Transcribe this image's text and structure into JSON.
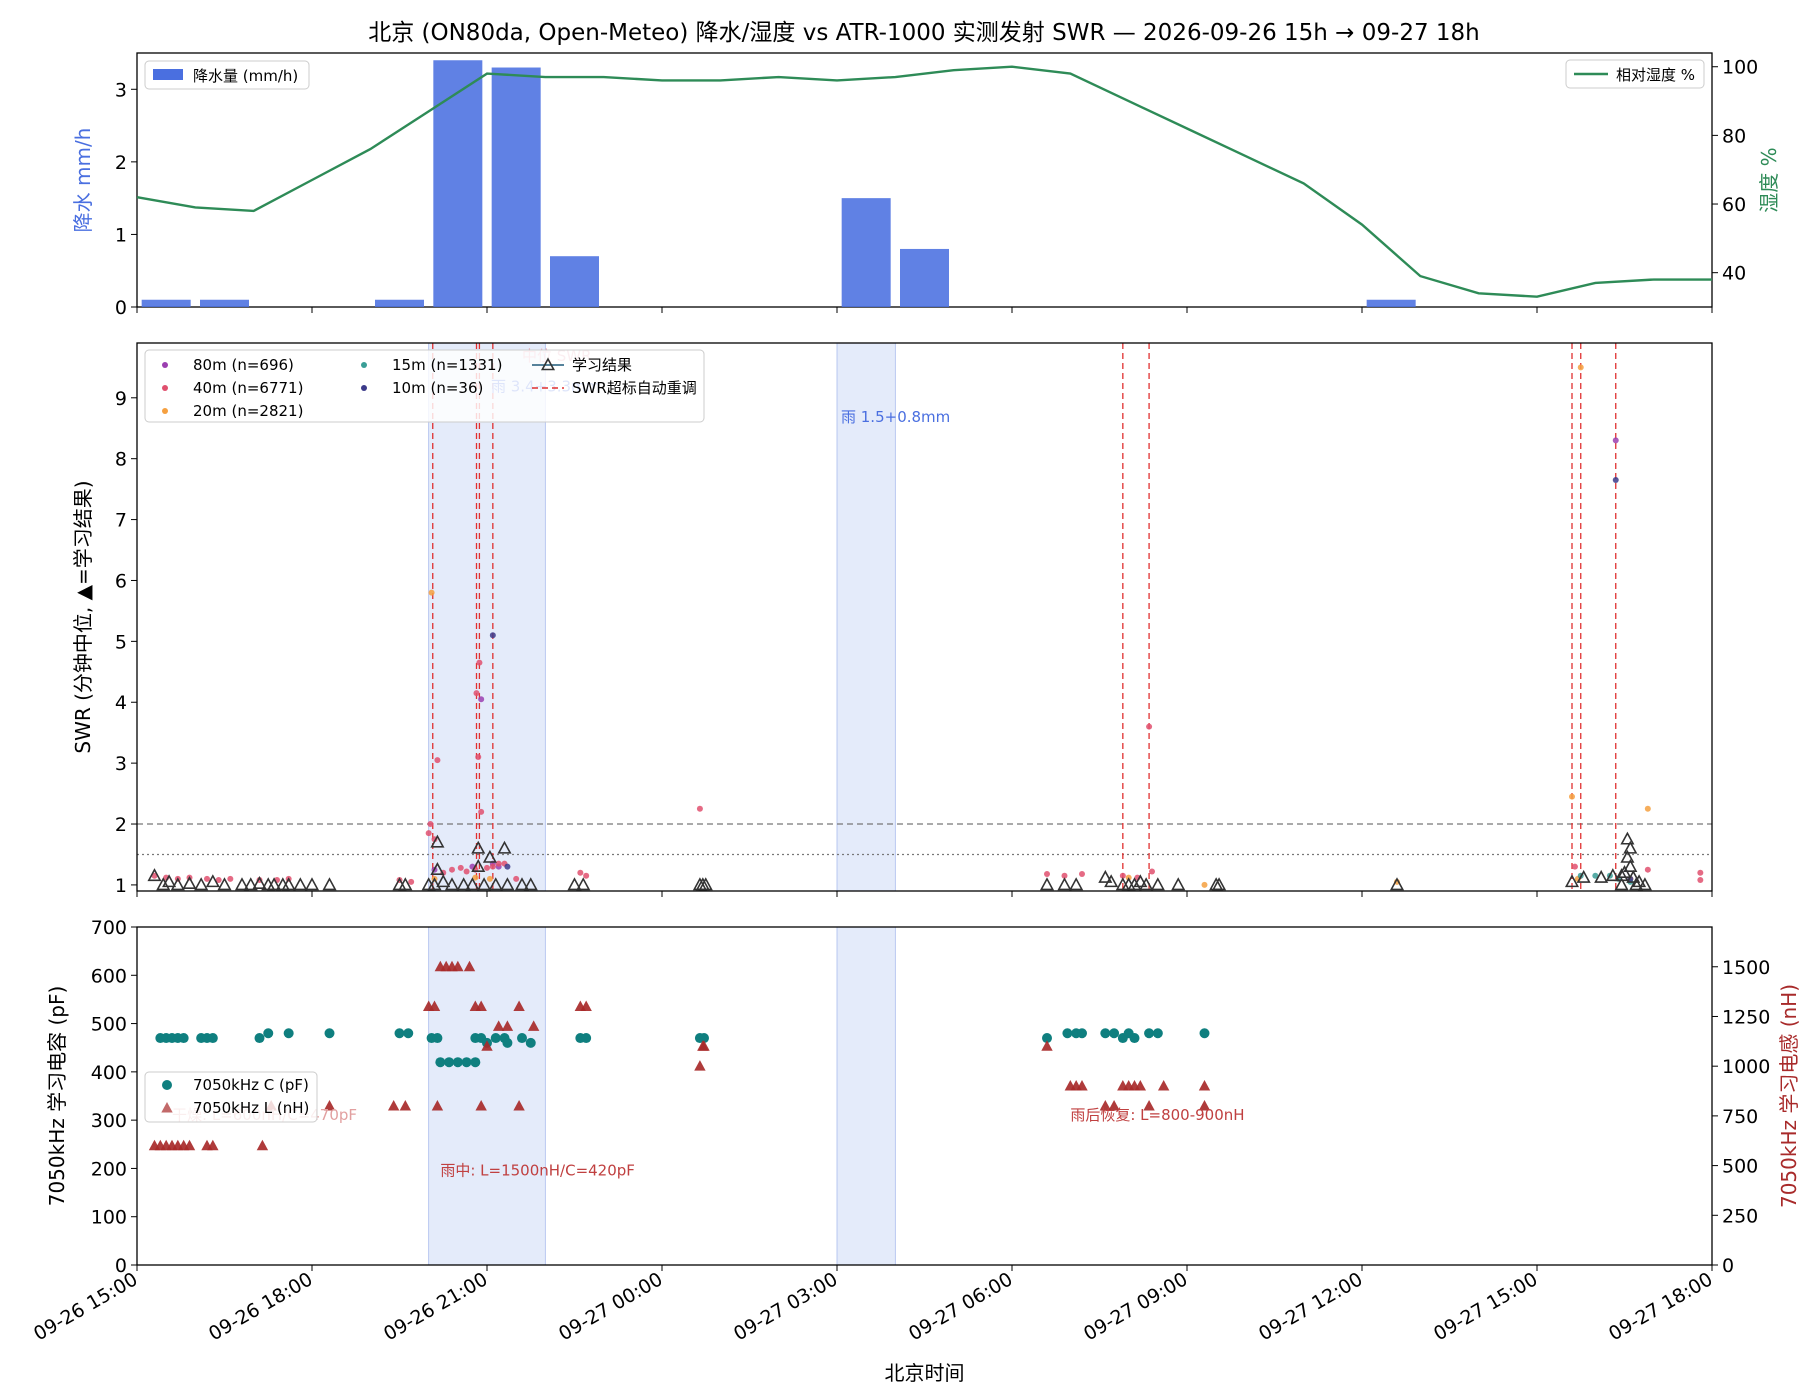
{
  "title": "北京 (ON80da, Open-Meteo) 降水/湿度  vs  ATR-1000 实测发射 SWR  —  2026-09-26 15h → 09-27 18h",
  "colors": {
    "precip": "#4a6fe0",
    "humidity": "#2e8b57",
    "rain_shade": "#d9e2f8",
    "retune": "#e03030",
    "band_80m": "#9b3fb0",
    "band_40m": "#e0506e",
    "band_20m": "#f5a040",
    "band_15m": "#3a9e96",
    "band_10m": "#3c3a8a",
    "learn_edge": "#333333",
    "learn_line": "#1f5a7a",
    "cap": "#0f7f7f",
    "ind": "#a82a2a"
  },
  "x_axis": {
    "label": "北京时间",
    "range_hours": [
      0,
      27
    ],
    "ticks": [
      {
        "h": 0,
        "label": "09-26 15:00"
      },
      {
        "h": 3,
        "label": "09-26 18:00"
      },
      {
        "h": 6,
        "label": "09-26 21:00"
      },
      {
        "h": 9,
        "label": "09-27 00:00"
      },
      {
        "h": 12,
        "label": "09-27 03:00"
      },
      {
        "h": 15,
        "label": "09-27 06:00"
      },
      {
        "h": 18,
        "label": "09-27 09:00"
      },
      {
        "h": 21,
        "label": "09-27 12:00"
      },
      {
        "h": 24,
        "label": "09-27 15:00"
      },
      {
        "h": 27,
        "label": "09-27 18:00"
      }
    ]
  },
  "chart_data": [
    {
      "type": "bar",
      "panel": "weather",
      "ylabel_left": "降水 mm/h",
      "ylabel_right": "湿度 %",
      "ylim_left": [
        0,
        3.5
      ],
      "yticks_left": [
        0,
        1,
        2,
        3
      ],
      "ylim_right": [
        30,
        104
      ],
      "yticks_right": [
        40,
        60,
        80,
        100
      ],
      "legend_precip": "降水量 (mm/h)",
      "legend_humidity": "相对湿度 %",
      "precip": {
        "hours": [
          0,
          1,
          2,
          3,
          4,
          5,
          6,
          7,
          8,
          9,
          10,
          11,
          12,
          13,
          14,
          15,
          16,
          17,
          18,
          19,
          20,
          21,
          22,
          23,
          24,
          25,
          26,
          27
        ],
        "values": [
          0.1,
          0.1,
          0,
          0,
          0.1,
          3.4,
          3.3,
          0.7,
          0,
          0,
          0,
          0,
          1.5,
          0.8,
          0,
          0,
          0,
          0,
          0,
          0,
          0,
          0.1,
          0,
          0,
          0,
          0,
          0,
          0
        ]
      },
      "humidity": {
        "hours": [
          0,
          1,
          2,
          3,
          4,
          5,
          6,
          7,
          8,
          9,
          10,
          11,
          12,
          13,
          14,
          15,
          16,
          17,
          18,
          19,
          20,
          21,
          22,
          23,
          24,
          25,
          26,
          27
        ],
        "values": [
          62,
          59,
          58,
          67,
          76,
          87,
          98,
          97,
          97,
          96,
          96,
          97,
          96,
          97,
          99,
          100,
          98,
          90,
          82,
          74,
          66,
          54,
          39,
          34,
          33,
          37,
          38,
          38
        ]
      }
    },
    {
      "type": "scatter",
      "panel": "swr",
      "ylabel": "SWR (分钟中位, ▲=学习结果)",
      "ylim": [
        0.9,
        9.9
      ],
      "yticks": [
        1,
        2,
        3,
        4,
        5,
        6,
        7,
        8,
        9
      ],
      "ref_lines": [
        {
          "y": 2.0,
          "style": "dashed"
        },
        {
          "y": 1.5,
          "style": "dotted"
        }
      ],
      "legend": [
        {
          "label": "80m (n=696)",
          "series": "80m"
        },
        {
          "label": "40m (n=6771)",
          "series": "40m"
        },
        {
          "label": "20m (n=2821)",
          "series": "20m"
        },
        {
          "label": "15m (n=1331)",
          "series": "15m"
        },
        {
          "label": "10m (n=36)",
          "series": "10m"
        },
        {
          "label": "学习结果",
          "series": "learn"
        },
        {
          "label": "SWR超标自动重调",
          "series": "retune"
        }
      ],
      "rain_labels": [
        {
          "text": "雨 3.4+3.3mm",
          "x": 6.0,
          "y": 9.1
        },
        {
          "text": "雨 1.5+0.8mm",
          "x": 12.0,
          "y": 8.6
        }
      ],
      "faint_label": {
        "text": "中位 SWR",
        "x": 6.6,
        "y": 9.7
      },
      "retune_hours": [
        5.07,
        5.82,
        5.87,
        6.1,
        16.9,
        17.35,
        24.6,
        24.75,
        25.35
      ],
      "points": {
        "80m": [
          [
            5.1,
            1.25
          ],
          [
            5.75,
            1.3
          ],
          [
            5.9,
            4.05
          ],
          [
            6.1,
            1.35
          ],
          [
            6.2,
            1.3
          ],
          [
            25.35,
            8.3
          ]
        ],
        "40m": [
          [
            0.3,
            1.15
          ],
          [
            0.5,
            1.12
          ],
          [
            0.7,
            1.1
          ],
          [
            0.9,
            1.12
          ],
          [
            1.2,
            1.1
          ],
          [
            1.4,
            1.08
          ],
          [
            1.6,
            1.1
          ],
          [
            2.1,
            1.08
          ],
          [
            2.4,
            1.08
          ],
          [
            2.6,
            1.1
          ],
          [
            4.5,
            1.08
          ],
          [
            4.7,
            1.05
          ],
          [
            5.0,
            1.85
          ],
          [
            5.03,
            2.0
          ],
          [
            5.1,
            1.75
          ],
          [
            5.15,
            3.05
          ],
          [
            5.25,
            1.2
          ],
          [
            5.4,
            1.25
          ],
          [
            5.55,
            1.28
          ],
          [
            5.65,
            1.22
          ],
          [
            5.8,
            1.25
          ],
          [
            5.82,
            4.15
          ],
          [
            5.85,
            3.1
          ],
          [
            5.87,
            4.65
          ],
          [
            5.9,
            2.2
          ],
          [
            6.0,
            1.28
          ],
          [
            6.1,
            1.3
          ],
          [
            6.2,
            1.35
          ],
          [
            6.3,
            1.35
          ],
          [
            6.5,
            1.1
          ],
          [
            7.6,
            1.2
          ],
          [
            7.7,
            1.15
          ],
          [
            9.65,
            2.25
          ],
          [
            15.6,
            1.18
          ],
          [
            15.9,
            1.15
          ],
          [
            16.2,
            1.18
          ],
          [
            16.9,
            1.15
          ],
          [
            17.15,
            1.12
          ],
          [
            17.35,
            3.6
          ],
          [
            17.4,
            1.22
          ],
          [
            24.65,
            1.3
          ],
          [
            25.9,
            1.25
          ],
          [
            26.8,
            1.2
          ],
          [
            26.8,
            1.08
          ]
        ],
        "20m": [
          [
            5.05,
            5.8
          ],
          [
            5.1,
            1.1
          ],
          [
            5.8,
            1.12
          ],
          [
            6.05,
            1.1
          ],
          [
            17.0,
            1.12
          ],
          [
            18.3,
            1.0
          ],
          [
            21.6,
            1.05
          ],
          [
            24.6,
            2.45
          ],
          [
            24.75,
            9.5
          ],
          [
            24.7,
            1.1
          ],
          [
            25.6,
            1.1
          ],
          [
            25.9,
            2.25
          ]
        ],
        "15m": [
          [
            24.75,
            1.15
          ],
          [
            25.0,
            1.15
          ],
          [
            25.25,
            1.15
          ],
          [
            25.4,
            1.1
          ],
          [
            25.6,
            1.05
          ]
        ],
        "10m": [
          [
            6.1,
            5.1
          ],
          [
            6.35,
            1.3
          ],
          [
            25.35,
            7.65
          ],
          [
            25.6,
            1.1
          ]
        ]
      },
      "learn": [
        [
          0.3,
          1.15
        ],
        [
          0.45,
          1.0
        ],
        [
          0.55,
          1.05
        ],
        [
          0.7,
          1.0
        ],
        [
          0.9,
          1.02
        ],
        [
          1.1,
          1.0
        ],
        [
          1.3,
          1.05
        ],
        [
          1.5,
          1.0
        ],
        [
          1.8,
          1.0
        ],
        [
          1.95,
          1.0
        ],
        [
          2.1,
          1.02
        ],
        [
          2.25,
          1.0
        ],
        [
          2.35,
          1.0
        ],
        [
          2.5,
          1.0
        ],
        [
          2.6,
          1.0
        ],
        [
          2.8,
          1.0
        ],
        [
          3.0,
          1.0
        ],
        [
          3.3,
          1.0
        ],
        [
          4.5,
          1.0
        ],
        [
          4.6,
          1.0
        ],
        [
          5.0,
          1.0
        ],
        [
          5.1,
          1.0
        ],
        [
          5.15,
          1.7
        ],
        [
          5.15,
          1.25
        ],
        [
          5.25,
          1.05
        ],
        [
          5.4,
          1.0
        ],
        [
          5.6,
          1.0
        ],
        [
          5.75,
          1.0
        ],
        [
          5.85,
          1.6
        ],
        [
          5.85,
          1.3
        ],
        [
          5.95,
          1.0
        ],
        [
          6.05,
          1.45
        ],
        [
          6.15,
          1.0
        ],
        [
          6.3,
          1.6
        ],
        [
          6.35,
          1.0
        ],
        [
          6.6,
          1.0
        ],
        [
          6.75,
          1.0
        ],
        [
          7.5,
          1.0
        ],
        [
          7.65,
          1.0
        ],
        [
          9.65,
          1.0
        ],
        [
          9.7,
          1.0
        ],
        [
          9.75,
          1.0
        ],
        [
          15.6,
          1.0
        ],
        [
          15.9,
          1.0
        ],
        [
          16.1,
          1.0
        ],
        [
          16.6,
          1.12
        ],
        [
          16.7,
          1.05
        ],
        [
          16.9,
          1.0
        ],
        [
          17.0,
          1.0
        ],
        [
          17.1,
          1.0
        ],
        [
          17.2,
          1.05
        ],
        [
          17.3,
          1.0
        ],
        [
          17.5,
          1.0
        ],
        [
          17.85,
          1.0
        ],
        [
          18.5,
          1.0
        ],
        [
          18.55,
          1.0
        ],
        [
          21.6,
          1.0
        ],
        [
          24.6,
          1.05
        ],
        [
          24.8,
          1.12
        ],
        [
          25.1,
          1.12
        ],
        [
          25.3,
          1.15
        ],
        [
          25.45,
          1.15
        ],
        [
          25.55,
          1.75
        ],
        [
          25.6,
          1.6
        ],
        [
          25.55,
          1.45
        ],
        [
          25.6,
          1.3
        ],
        [
          25.5,
          1.2
        ],
        [
          25.65,
          1.12
        ],
        [
          25.75,
          1.05
        ],
        [
          25.45,
          1.0
        ],
        [
          25.7,
          1.0
        ],
        [
          25.85,
          1.0
        ]
      ]
    },
    {
      "type": "scatter",
      "panel": "tuner",
      "ylabel_left": "7050kHz 学习电容 (pF)",
      "ylabel_right": "7050kHz 学习电感 (nH)",
      "ylim_left": [
        0,
        700
      ],
      "yticks_left": [
        0,
        100,
        200,
        300,
        400,
        500,
        600,
        700
      ],
      "ylim_right": [
        0,
        1700
      ],
      "yticks_right": [
        0,
        250,
        500,
        750,
        1000,
        1250,
        1500
      ],
      "legend": [
        {
          "label": "7050kHz C (pF)",
          "series": "cap"
        },
        {
          "label": "7050kHz L (nH)",
          "series": "ind"
        }
      ],
      "annotations": [
        {
          "text": "干燥: L=600nH/C=470pF",
          "x": 0.6,
          "y": 300,
          "faint": true
        },
        {
          "text": "雨中: L=1500nH/C=420pF",
          "x": 5.2,
          "y": 185,
          "faint": false
        },
        {
          "text": "雨后恢复: L=800-900nH",
          "x": 16.0,
          "y": 300,
          "faint": false
        }
      ],
      "cap": [
        [
          0.4,
          470
        ],
        [
          0.5,
          470
        ],
        [
          0.6,
          470
        ],
        [
          0.7,
          470
        ],
        [
          0.8,
          470
        ],
        [
          1.1,
          470
        ],
        [
          1.2,
          470
        ],
        [
          1.3,
          470
        ],
        [
          2.1,
          470
        ],
        [
          2.25,
          480
        ],
        [
          2.6,
          480
        ],
        [
          3.3,
          480
        ],
        [
          4.5,
          480
        ],
        [
          4.65,
          480
        ],
        [
          5.05,
          470
        ],
        [
          5.15,
          470
        ],
        [
          5.2,
          420
        ],
        [
          5.35,
          420
        ],
        [
          5.5,
          420
        ],
        [
          5.65,
          420
        ],
        [
          5.8,
          420
        ],
        [
          5.8,
          470
        ],
        [
          5.9,
          470
        ],
        [
          6.0,
          460
        ],
        [
          6.15,
          470
        ],
        [
          6.3,
          470
        ],
        [
          6.35,
          460
        ],
        [
          6.6,
          470
        ],
        [
          6.75,
          460
        ],
        [
          7.6,
          470
        ],
        [
          7.7,
          470
        ],
        [
          9.65,
          470
        ],
        [
          9.72,
          470
        ],
        [
          15.6,
          470
        ],
        [
          15.95,
          480
        ],
        [
          16.1,
          480
        ],
        [
          16.2,
          480
        ],
        [
          16.6,
          480
        ],
        [
          16.75,
          480
        ],
        [
          16.9,
          470
        ],
        [
          17.0,
          480
        ],
        [
          17.1,
          470
        ],
        [
          17.35,
          480
        ],
        [
          17.5,
          480
        ],
        [
          18.3,
          480
        ]
      ],
      "ind": [
        [
          0.3,
          600
        ],
        [
          0.4,
          600
        ],
        [
          0.5,
          600
        ],
        [
          0.6,
          600
        ],
        [
          0.7,
          600
        ],
        [
          0.8,
          600
        ],
        [
          0.9,
          600
        ],
        [
          1.2,
          600
        ],
        [
          1.3,
          600
        ],
        [
          2.15,
          600
        ],
        [
          2.3,
          800
        ],
        [
          3.3,
          800
        ],
        [
          4.4,
          800
        ],
        [
          4.6,
          800
        ],
        [
          5.0,
          1300
        ],
        [
          5.1,
          1300
        ],
        [
          5.15,
          800
        ],
        [
          5.2,
          1500
        ],
        [
          5.3,
          1500
        ],
        [
          5.4,
          1500
        ],
        [
          5.5,
          1500
        ],
        [
          5.7,
          1500
        ],
        [
          5.8,
          1300
        ],
        [
          5.9,
          800
        ],
        [
          5.9,
          1300
        ],
        [
          6.0,
          1100
        ],
        [
          6.2,
          1200
        ],
        [
          6.35,
          1200
        ],
        [
          6.55,
          800
        ],
        [
          6.55,
          1300
        ],
        [
          6.8,
          1200
        ],
        [
          7.6,
          1300
        ],
        [
          7.7,
          1300
        ],
        [
          9.65,
          1000
        ],
        [
          9.7,
          1100
        ],
        [
          9.72,
          1100
        ],
        [
          15.6,
          1100
        ],
        [
          16.0,
          900
        ],
        [
          16.1,
          900
        ],
        [
          16.2,
          900
        ],
        [
          16.6,
          800
        ],
        [
          16.75,
          800
        ],
        [
          16.9,
          900
        ],
        [
          17.0,
          900
        ],
        [
          17.1,
          900
        ],
        [
          17.2,
          900
        ],
        [
          17.35,
          800
        ],
        [
          17.6,
          900
        ],
        [
          18.3,
          900
        ],
        [
          18.3,
          800
        ]
      ]
    }
  ]
}
